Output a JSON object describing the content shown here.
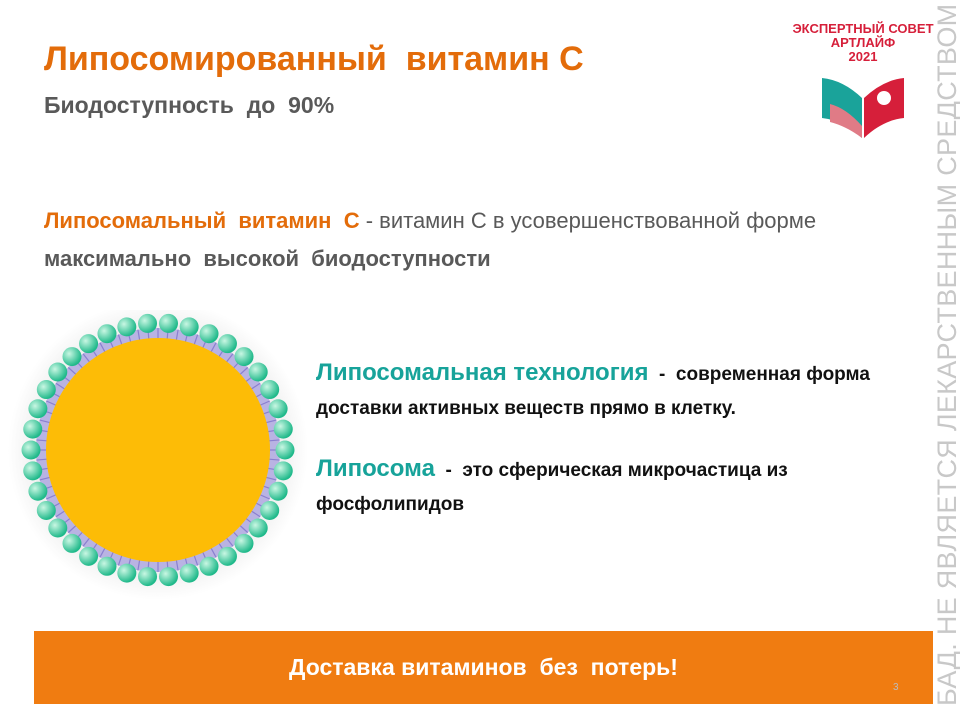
{
  "header": {
    "title": "Липосомированный  витамин С",
    "subtitle": "Биодоступность  до  90%"
  },
  "intro": {
    "term": "Липосомальный  витамин  С",
    "text": " - витамин С в усовершенствованной форме ",
    "emphasis": "максимально  высокой  биодоступности"
  },
  "points": [
    {
      "term": "Липосомальная технология",
      "dash": "  -  ",
      "text": "современная форма доставки активных веществ прямо в клетку."
    },
    {
      "term": "Липосома",
      "dash": "  -  ",
      "text": "это сферическая микрочастица из фосфолипидов"
    }
  ],
  "banner": "Доставка витаминов  без  потерь!",
  "logo": {
    "line1": "ЭКСПЕРТНЫЙ СОВЕТ",
    "line2": "АРТЛАЙФ",
    "line3": "2021"
  },
  "side_note": "БАД. НЕ ЯВЛЯЕТСЯ ЛЕКАРСТВЕННЫМ СРЕДСТВОМ",
  "page_number": "3"
}
